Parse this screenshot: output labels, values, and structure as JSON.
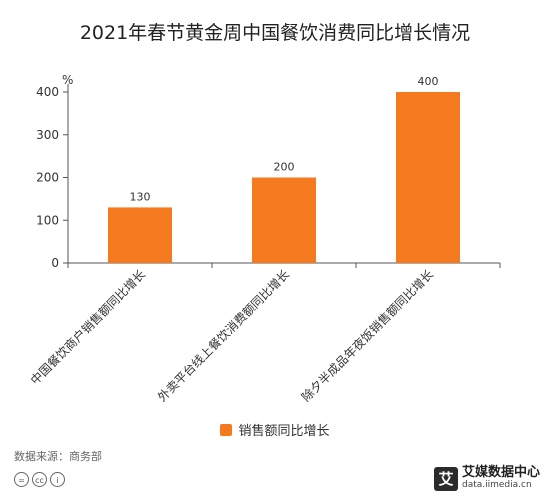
{
  "chart_data": {
    "type": "bar",
    "title": "2021年春节黄金周中国餐饮消费同比增长情况",
    "ylabel": "%",
    "ylim": [
      0,
      400
    ],
    "yticks": [
      0,
      100,
      200,
      300,
      400
    ],
    "categories": [
      "中国餐饮商户销售额同比增长",
      "外卖平台线上餐饮消费额同比增长",
      "除夕半成品年夜饭销售额同比增长"
    ],
    "series": [
      {
        "name": "销售额同比增长",
        "values": [
          130,
          200,
          400
        ],
        "color": "#F57A1F"
      }
    ],
    "legend": "bottom",
    "grid": false
  },
  "footer": {
    "source": "数据来源：商务部",
    "cc_icons": [
      "cc-equals-icon",
      "cc-icon",
      "cc-person-icon"
    ],
    "cc_symbols": [
      "=",
      "cc",
      "i"
    ],
    "brand_name": "艾媒数据中心",
    "brand_url": "data.iimedia.cn",
    "brand_mark": "艾"
  }
}
